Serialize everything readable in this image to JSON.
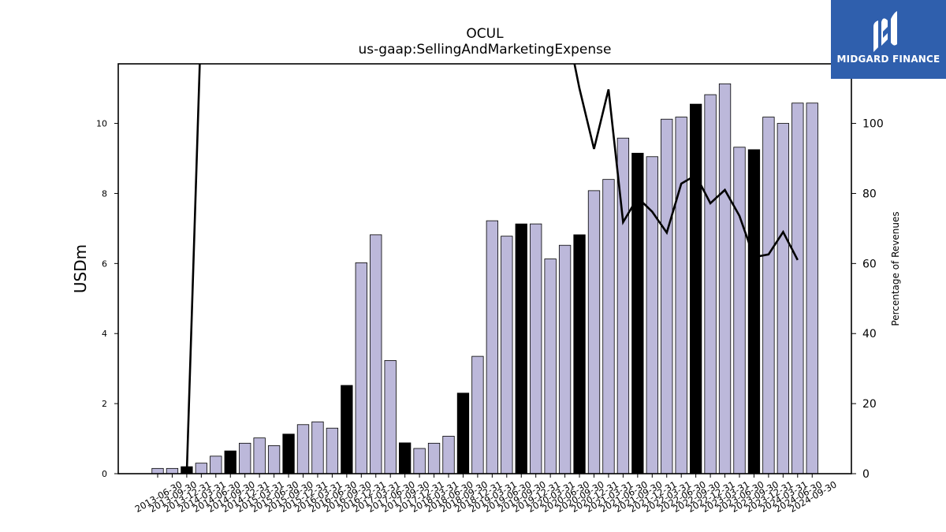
{
  "chart_data": {
    "type": "bar",
    "title": "OCUL",
    "subtitle": "us-gaap:SellingAndMarketingExpense",
    "ylabel": "USDm",
    "y2label": "Percentage of Revenues",
    "ylim": [
      0,
      11.7
    ],
    "y2lim": [
      0,
      117
    ],
    "yticks": [
      0,
      2,
      4,
      6,
      8,
      10
    ],
    "y2ticks": [
      0,
      20,
      40,
      60,
      80,
      100
    ],
    "categories": [
      "2013-06-30",
      "2013-09-30",
      "2013-12-31",
      "2014-03-31",
      "2014-06-30",
      "2014-09-30",
      "2014-12-31",
      "2015-03-31",
      "2015-06-30",
      "2015-09-30",
      "2015-12-31",
      "2016-03-31",
      "2016-06-30",
      "2016-09-30",
      "2016-12-31",
      "2017-03-31",
      "2017-06-30",
      "2017-09-30",
      "2017-12-31",
      "2018-03-31",
      "2018-06-30",
      "2018-09-30",
      "2018-12-31",
      "2019-03-31",
      "2019-06-30",
      "2019-09-30",
      "2019-12-31",
      "2020-03-31",
      "2020-06-30",
      "2020-09-30",
      "2020-12-31",
      "2021-03-31",
      "2021-06-30",
      "2021-09-30",
      "2021-12-31",
      "2022-03-31",
      "2022-06-30",
      "2022-09-30",
      "2022-12-31",
      "2023-03-31",
      "2023-06-30",
      "2023-09-30",
      "2023-12-31",
      "2024-03-31",
      "2024-06-30",
      "2024-09-30"
    ],
    "series": [
      {
        "values": [
          0.15,
          0.15,
          0.2,
          0.3,
          0.5,
          0.65,
          0.87,
          1.02,
          0.8,
          1.13,
          1.4,
          1.48,
          1.3,
          2.52,
          6.02,
          6.82,
          3.23,
          0.88,
          0.72,
          0.87,
          1.07,
          2.3,
          3.35,
          7.22,
          6.78,
          7.13,
          7.13,
          6.13,
          6.52,
          6.82,
          8.08,
          8.4,
          9.58,
          9.15,
          9.05,
          10.12,
          10.18,
          10.55,
          10.82,
          11.13,
          9.32,
          9.25,
          10.18,
          10.0,
          10.58,
          10.58
        ],
        "highlight": [
          false,
          false,
          true,
          false,
          false,
          true,
          false,
          false,
          false,
          true,
          false,
          false,
          false,
          true,
          false,
          false,
          false,
          true,
          false,
          false,
          false,
          true,
          false,
          false,
          false,
          true,
          false,
          false,
          false,
          true,
          false,
          false,
          false,
          true,
          false,
          false,
          false,
          true,
          false,
          false,
          false,
          true,
          false,
          false,
          false,
          false
        ]
      },
      {
        "axis": "right",
        "type": "line",
        "x": [
          "2013-12-31",
          "2014-03-31",
          "2020-06-30",
          "2020-09-30",
          "2020-12-31",
          "2021-03-31",
          "2021-06-30",
          "2021-09-30",
          "2021-12-31",
          "2022-03-31",
          "2022-06-30",
          "2022-09-30",
          "2022-12-31",
          "2023-03-31",
          "2023-06-30",
          "2023-09-30",
          "2023-12-31",
          "2024-03-31",
          "2024-06-30"
        ],
        "values": [
          0,
          117,
          117,
          110,
          92.7,
          109.7,
          71.8,
          78.8,
          74.8,
          68.8,
          82.8,
          85.2,
          77.2,
          81,
          73.6,
          61.8,
          62.6,
          69,
          61
        ],
        "clip": true
      }
    ],
    "colors": {
      "bar": "#bcb8da",
      "bar_highlight": "#000000",
      "line": "#000000",
      "axis": "#000000"
    }
  },
  "logo": {
    "text": "MIDGARD FINANCE",
    "background": "#2f5fad"
  }
}
